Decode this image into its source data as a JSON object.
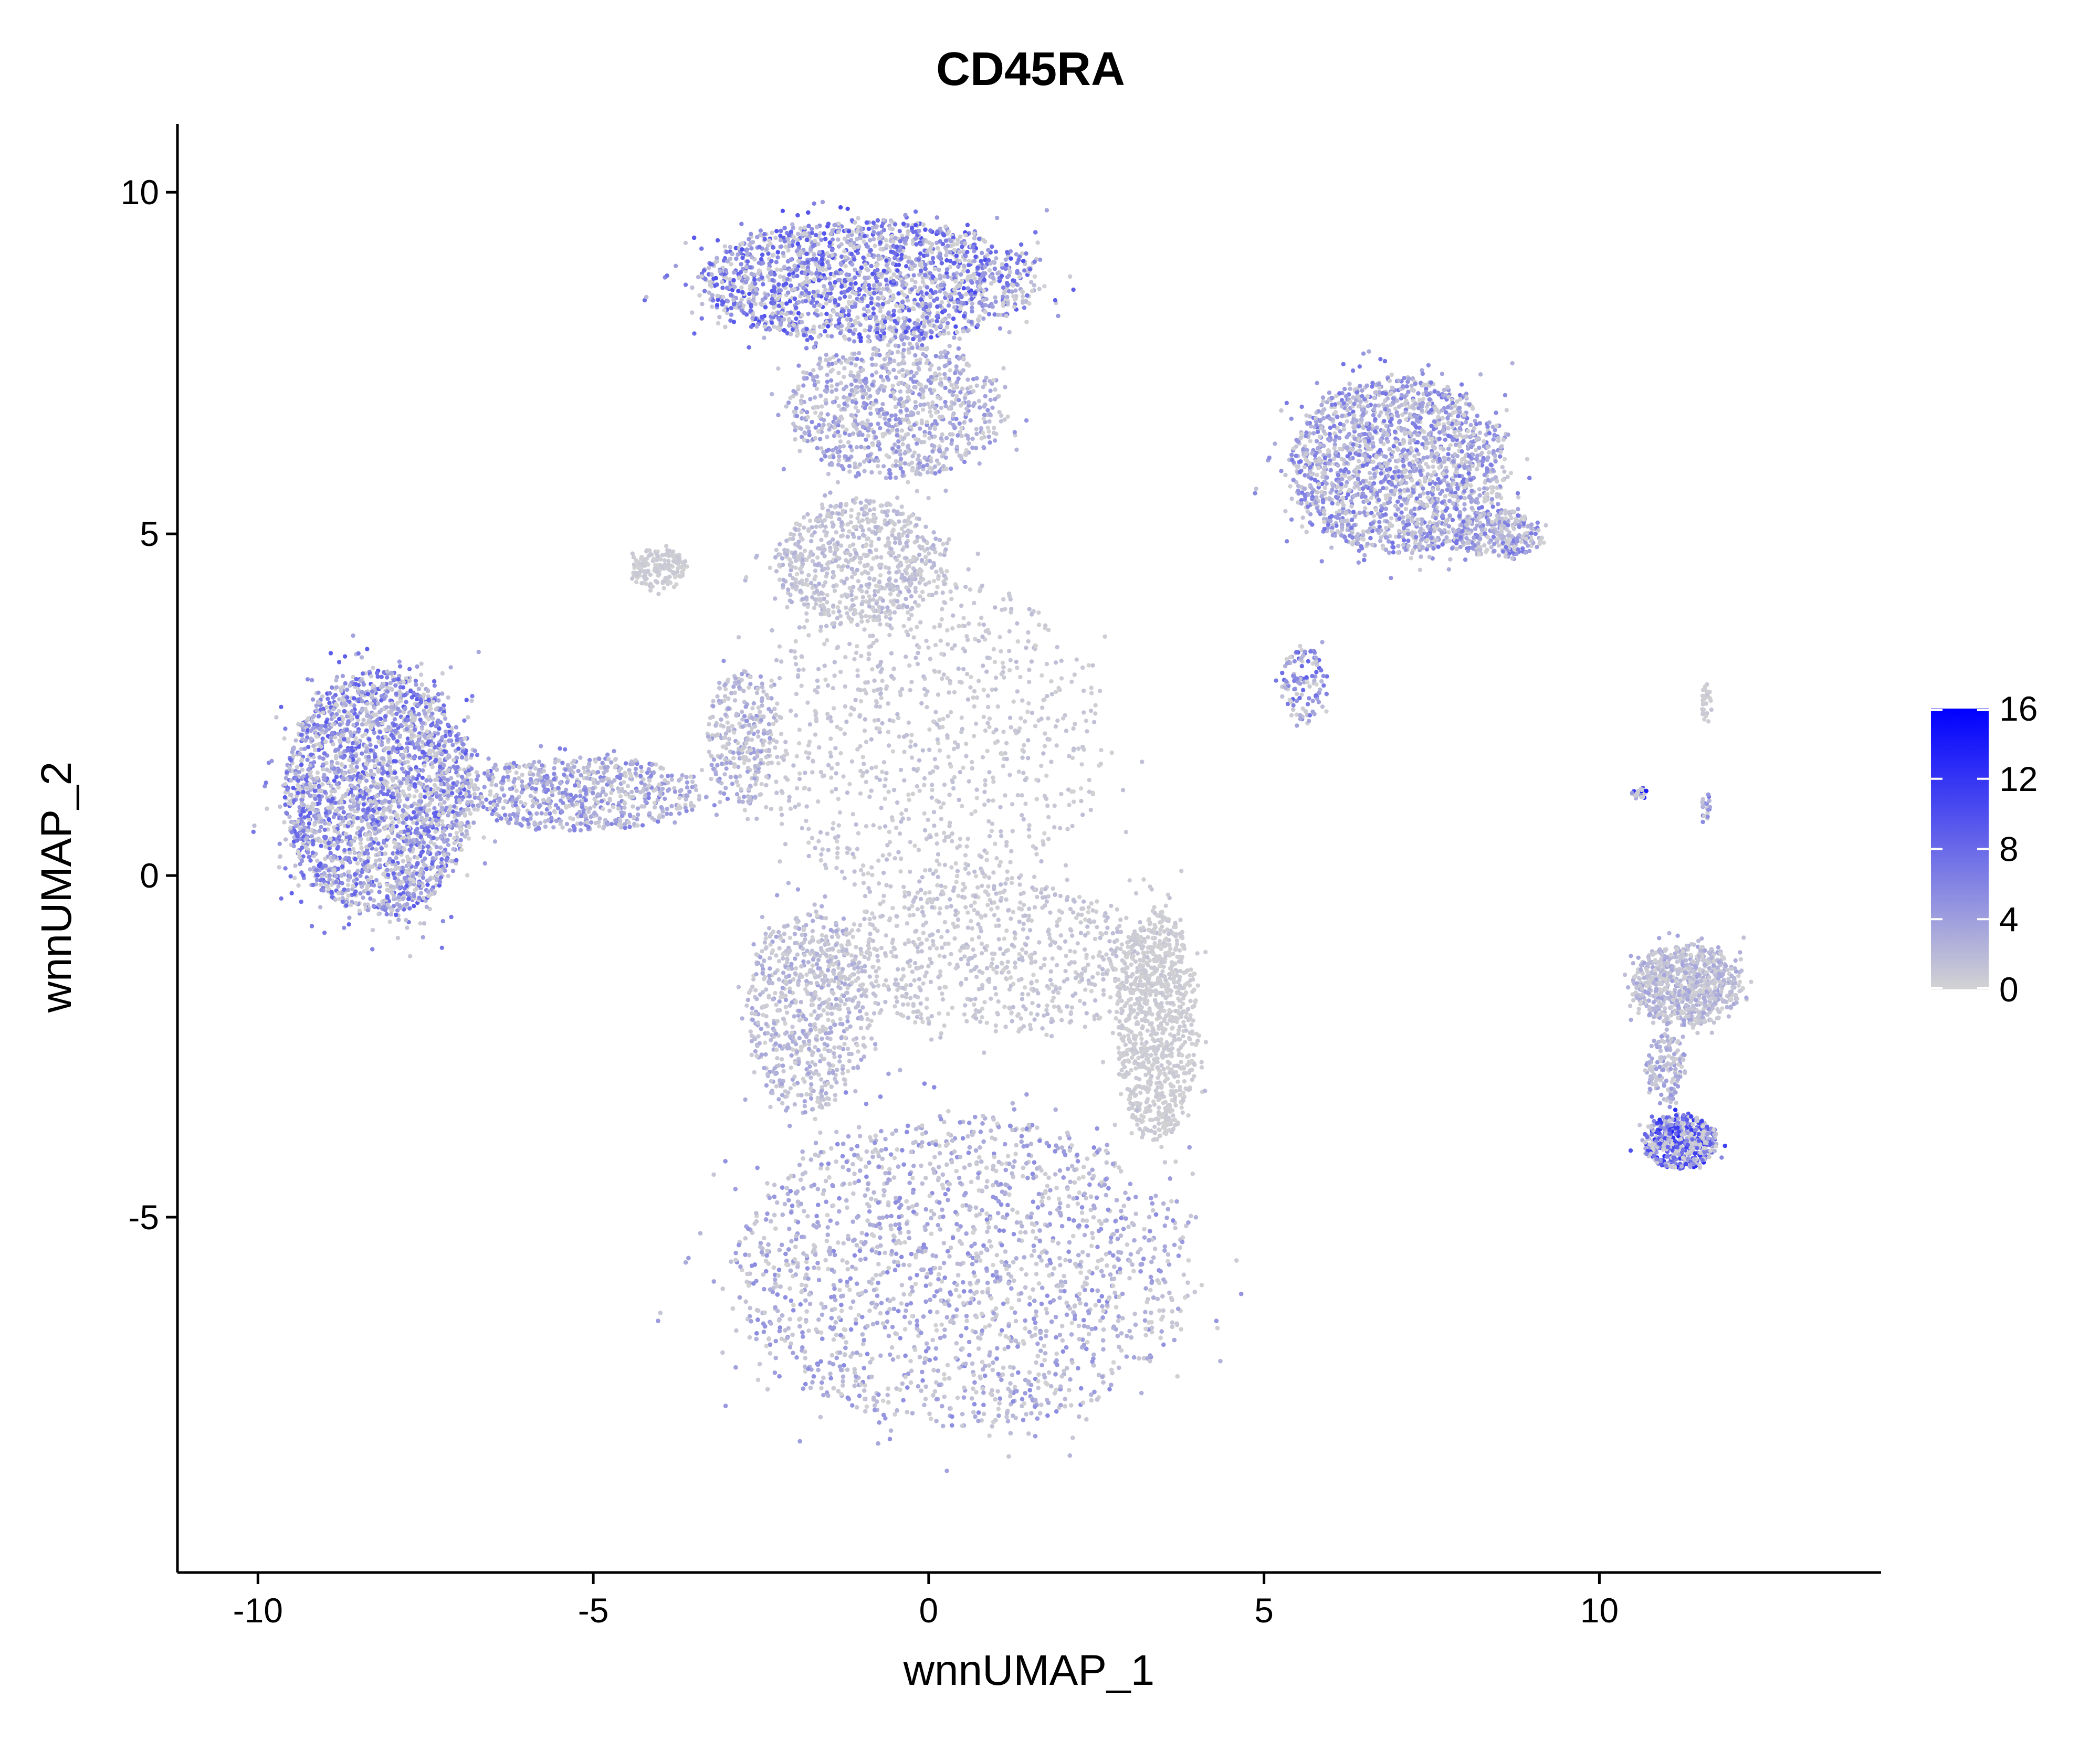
{
  "chart_data": {
    "type": "scatter",
    "title": "CD45RA",
    "xlabel": "wnnUMAP_1",
    "ylabel": "wnnUMAP_2",
    "xlim": [
      -11.2,
      14.2
    ],
    "ylim": [
      -10.2,
      11.0
    ],
    "xticks": [
      -10,
      -5,
      0,
      5,
      10
    ],
    "yticks": [
      -5,
      0,
      5,
      10
    ],
    "xtick_labels": [
      "-10",
      "-5",
      "0",
      "5",
      "10"
    ],
    "ytick_labels": [
      "-5",
      "0",
      "5",
      "10"
    ],
    "grid": false,
    "legend_position": "right",
    "color_scale": {
      "low": "#D3D3D3",
      "high": "#0000FF",
      "min": 0,
      "max": 16,
      "ticks": [
        0,
        4,
        8,
        12,
        16
      ],
      "tick_labels": [
        "0",
        "4",
        "8",
        "12",
        "16"
      ]
    },
    "clusters": [
      {
        "cx": -8.2,
        "cy": 1.2,
        "rx": 1.4,
        "ry": 1.8,
        "n": 2600,
        "expr": 5.0
      },
      {
        "cx": -5.2,
        "cy": 1.2,
        "rx": 1.8,
        "ry": 0.55,
        "n": 700,
        "expr": 3.5
      },
      {
        "cx": -0.9,
        "cy": 8.7,
        "rx": 2.5,
        "ry": 0.9,
        "n": 2800,
        "expr": 5.5
      },
      {
        "cx": -0.5,
        "cy": 6.8,
        "rx": 1.6,
        "ry": 1.0,
        "n": 900,
        "expr": 3.0
      },
      {
        "cx": -1.0,
        "cy": 4.6,
        "rx": 1.3,
        "ry": 0.9,
        "n": 700,
        "expr": 1.5
      },
      {
        "cx": -4.0,
        "cy": 4.5,
        "rx": 0.4,
        "ry": 0.3,
        "n": 150,
        "expr": 0.5
      },
      {
        "cx": -2.8,
        "cy": 2.0,
        "rx": 0.5,
        "ry": 1.0,
        "n": 300,
        "expr": 2.5
      },
      {
        "cx": 0.0,
        "cy": 2.0,
        "rx": 2.6,
        "ry": 2.4,
        "n": 900,
        "expr": 1.0
      },
      {
        "cx": 1.0,
        "cy": -1.2,
        "rx": 2.6,
        "ry": 1.1,
        "n": 800,
        "expr": 1.0
      },
      {
        "cx": 3.4,
        "cy": -2.2,
        "rx": 0.6,
        "ry": 1.7,
        "n": 900,
        "expr": 0.4
      },
      {
        "cx": 0.5,
        "cy": -5.8,
        "rx": 3.4,
        "ry": 2.3,
        "n": 6500,
        "expr": 3.0
      },
      {
        "cx": -1.8,
        "cy": -2.0,
        "rx": 0.9,
        "ry": 1.5,
        "n": 700,
        "expr": 2.0
      },
      {
        "cx": 7.0,
        "cy": 6.0,
        "rx": 1.6,
        "ry": 1.3,
        "n": 2300,
        "expr": 4.0
      },
      {
        "cx": 8.5,
        "cy": 5.0,
        "rx": 0.7,
        "ry": 0.35,
        "n": 300,
        "expr": 4.0
      },
      {
        "cx": 5.6,
        "cy": 2.8,
        "rx": 0.35,
        "ry": 0.6,
        "n": 120,
        "expr": 5.0
      },
      {
        "cx": 11.3,
        "cy": -1.6,
        "rx": 0.8,
        "ry": 0.6,
        "n": 800,
        "expr": 2.0
      },
      {
        "cx": 11.2,
        "cy": -3.9,
        "rx": 0.55,
        "ry": 0.4,
        "n": 500,
        "expr": 7.0
      },
      {
        "cx": 11.0,
        "cy": -2.8,
        "rx": 0.3,
        "ry": 0.5,
        "n": 150,
        "expr": 2.5
      },
      {
        "cx": 11.6,
        "cy": 2.5,
        "rx": 0.08,
        "ry": 0.3,
        "n": 30,
        "expr": 0.5
      },
      {
        "cx": 10.6,
        "cy": 1.2,
        "rx": 0.12,
        "ry": 0.08,
        "n": 30,
        "expr": 10.0
      },
      {
        "cx": 11.6,
        "cy": 1.0,
        "rx": 0.08,
        "ry": 0.2,
        "n": 20,
        "expr": 4.0
      }
    ]
  }
}
